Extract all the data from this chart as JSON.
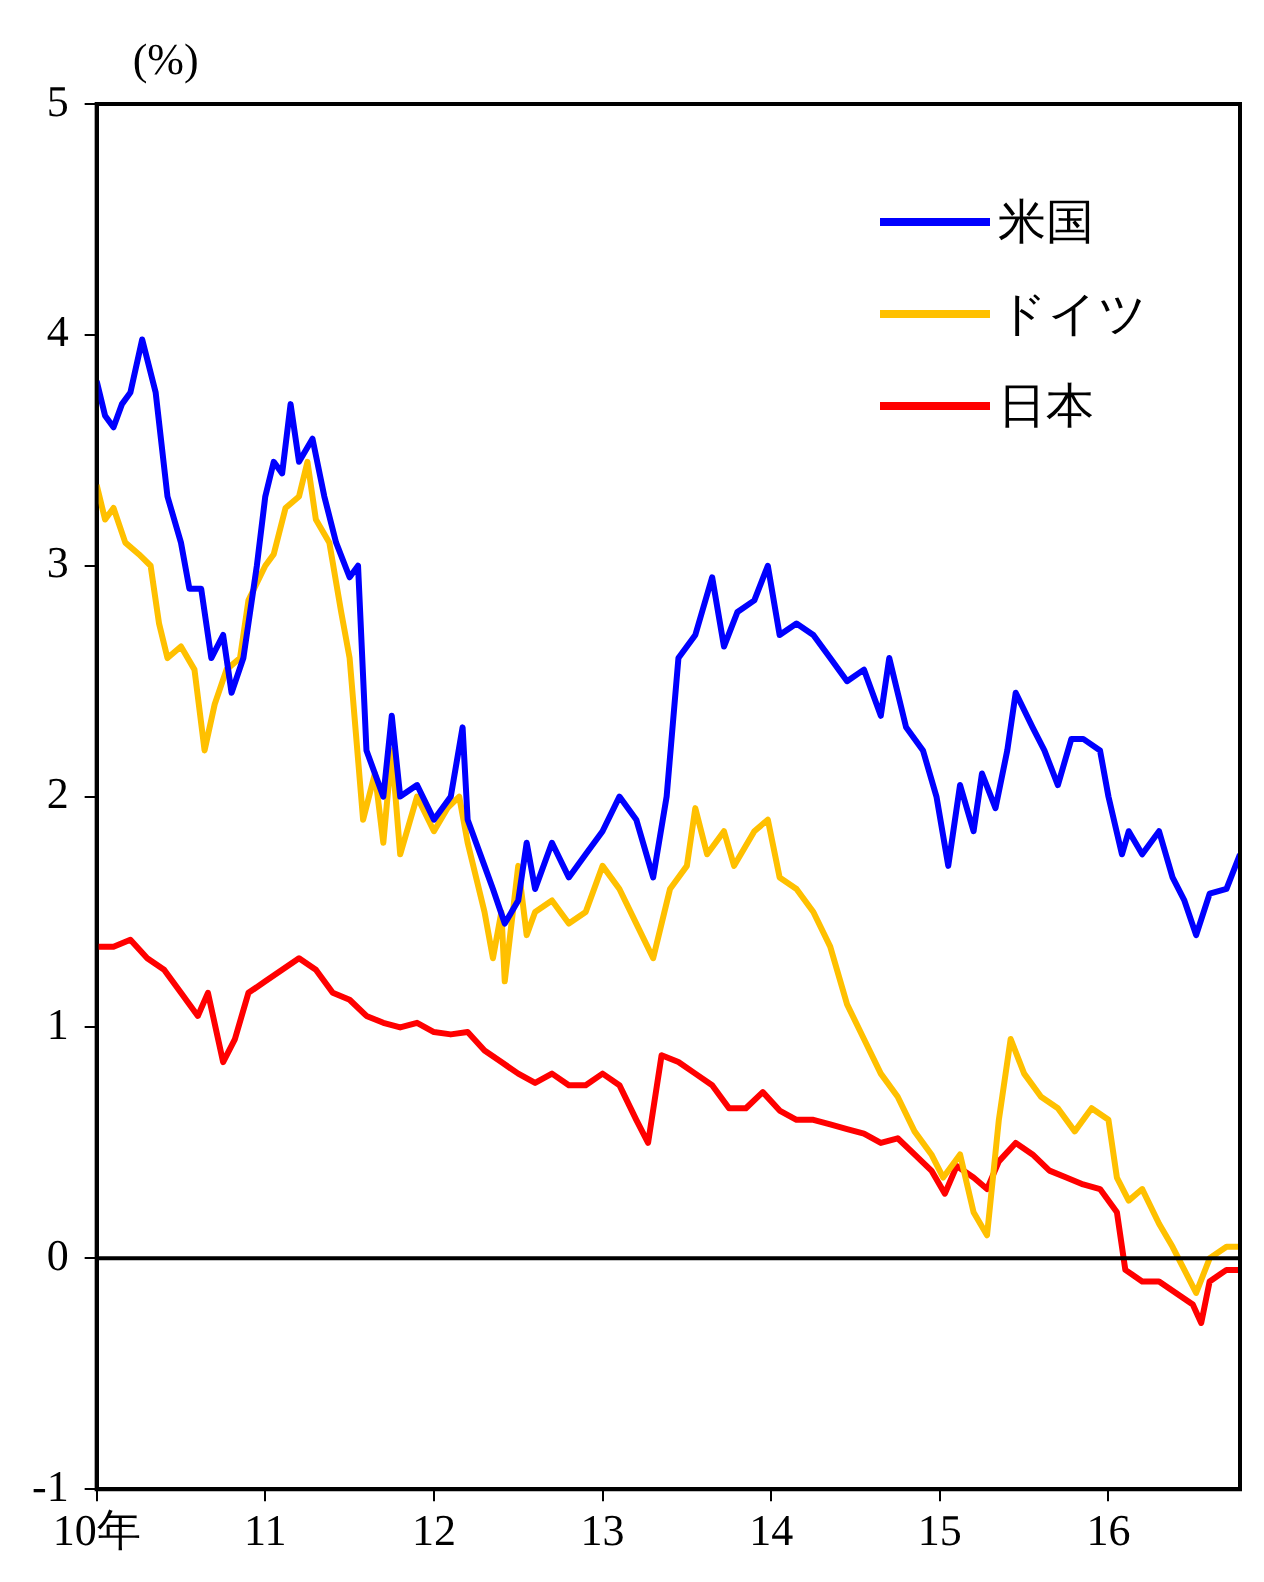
{
  "chart_data": {
    "type": "line",
    "ylabel": "(%)",
    "xlim": [
      10,
      16.78
    ],
    "xticks": [
      {
        "value": 10,
        "label": "10年"
      },
      11,
      12,
      13,
      14,
      15,
      16
    ],
    "ylim": [
      -1,
      5
    ],
    "yticks": [
      -1,
      0,
      1,
      2,
      3,
      4,
      5
    ],
    "grid": false,
    "legend": "top right",
    "marker": "none",
    "line_style": "solid",
    "ref_lines": [
      {
        "axis": "y",
        "value": 0,
        "color": "#000000"
      }
    ],
    "series": [
      {
        "name": "米国",
        "color": "#0000ff",
        "x": [
          10,
          10.05,
          10.1,
          10.15,
          10.2,
          10.27,
          10.35,
          10.42,
          10.5,
          10.55,
          10.62,
          10.68,
          10.75,
          10.8,
          10.87,
          10.95,
          11,
          11.05,
          11.1,
          11.15,
          11.2,
          11.28,
          11.35,
          11.42,
          11.5,
          11.55,
          11.6,
          11.7,
          11.75,
          11.8,
          11.9,
          12,
          12.1,
          12.17,
          12.2,
          12.3,
          12.35,
          12.42,
          12.5,
          12.55,
          12.6,
          12.7,
          12.8,
          12.9,
          13,
          13.1,
          13.2,
          13.3,
          13.38,
          13.45,
          13.55,
          13.65,
          13.72,
          13.8,
          13.9,
          13.98,
          14.05,
          14.15,
          14.25,
          14.35,
          14.45,
          14.55,
          14.65,
          14.7,
          14.8,
          14.9,
          14.98,
          15.05,
          15.12,
          15.2,
          15.25,
          15.33,
          15.4,
          15.45,
          15.55,
          15.62,
          15.7,
          15.78,
          15.85,
          15.95,
          16,
          16.08,
          16.12,
          16.2,
          16.3,
          16.38,
          16.45,
          16.52,
          16.6,
          16.7,
          16.78
        ],
        "values": [
          3.8,
          3.65,
          3.6,
          3.7,
          3.75,
          3.98,
          3.75,
          3.3,
          3.1,
          2.9,
          2.9,
          2.6,
          2.7,
          2.45,
          2.6,
          3.0,
          3.3,
          3.45,
          3.4,
          3.7,
          3.45,
          3.55,
          3.3,
          3.1,
          2.95,
          3.0,
          2.2,
          2.0,
          2.35,
          2.0,
          2.05,
          1.9,
          2.0,
          2.3,
          1.9,
          1.7,
          1.6,
          1.45,
          1.55,
          1.8,
          1.6,
          1.8,
          1.65,
          1.75,
          1.85,
          2.0,
          1.9,
          1.65,
          2.0,
          2.6,
          2.7,
          2.95,
          2.65,
          2.8,
          2.85,
          3.0,
          2.7,
          2.75,
          2.7,
          2.6,
          2.5,
          2.55,
          2.35,
          2.6,
          2.3,
          2.2,
          2.0,
          1.7,
          2.05,
          1.85,
          2.1,
          1.95,
          2.2,
          2.45,
          2.3,
          2.2,
          2.05,
          2.25,
          2.25,
          2.2,
          2.0,
          1.75,
          1.85,
          1.75,
          1.85,
          1.65,
          1.55,
          1.4,
          1.58,
          1.6,
          1.75
        ]
      },
      {
        "name": "ドイツ",
        "color": "#ffc000",
        "x": [
          10,
          10.05,
          10.1,
          10.17,
          10.25,
          10.32,
          10.37,
          10.42,
          10.5,
          10.58,
          10.64,
          10.7,
          10.77,
          10.85,
          10.9,
          11,
          11.05,
          11.12,
          11.2,
          11.25,
          11.3,
          11.38,
          11.45,
          11.5,
          11.58,
          11.65,
          11.7,
          11.75,
          11.8,
          11.9,
          12,
          12.08,
          12.15,
          12.2,
          12.3,
          12.35,
          12.4,
          12.42,
          12.5,
          12.55,
          12.6,
          12.7,
          12.8,
          12.9,
          13,
          13.1,
          13.2,
          13.3,
          13.4,
          13.5,
          13.55,
          13.62,
          13.72,
          13.78,
          13.9,
          13.98,
          14.05,
          14.15,
          14.25,
          14.35,
          14.45,
          14.55,
          14.65,
          14.75,
          14.85,
          14.95,
          15.02,
          15.12,
          15.2,
          15.28,
          15.35,
          15.42,
          15.5,
          15.6,
          15.7,
          15.8,
          15.9,
          16,
          16.05,
          16.12,
          16.2,
          16.3,
          16.38,
          16.45,
          16.52,
          16.6,
          16.7,
          16.78
        ],
        "values": [
          3.35,
          3.2,
          3.25,
          3.1,
          3.05,
          3.0,
          2.75,
          2.6,
          2.65,
          2.55,
          2.2,
          2.4,
          2.55,
          2.6,
          2.85,
          3.0,
          3.05,
          3.25,
          3.3,
          3.45,
          3.2,
          3.1,
          2.8,
          2.6,
          1.9,
          2.1,
          1.8,
          2.2,
          1.75,
          2.0,
          1.85,
          1.95,
          2.0,
          1.8,
          1.5,
          1.3,
          1.5,
          1.2,
          1.7,
          1.4,
          1.5,
          1.55,
          1.45,
          1.5,
          1.7,
          1.6,
          1.45,
          1.3,
          1.6,
          1.7,
          1.95,
          1.75,
          1.85,
          1.7,
          1.85,
          1.9,
          1.65,
          1.6,
          1.5,
          1.35,
          1.1,
          0.95,
          0.8,
          0.7,
          0.55,
          0.45,
          0.35,
          0.45,
          0.2,
          0.1,
          0.6,
          0.95,
          0.8,
          0.7,
          0.65,
          0.55,
          0.65,
          0.6,
          0.35,
          0.25,
          0.3,
          0.15,
          0.05,
          -0.05,
          -0.15,
          0.0,
          0.05,
          0.05
        ]
      },
      {
        "name": "日本",
        "color": "#ff0000",
        "x": [
          10,
          10.1,
          10.2,
          10.3,
          10.4,
          10.5,
          10.6,
          10.66,
          10.75,
          10.82,
          10.9,
          11,
          11.1,
          11.2,
          11.3,
          11.4,
          11.5,
          11.6,
          11.7,
          11.8,
          11.9,
          12,
          12.1,
          12.2,
          12.3,
          12.4,
          12.5,
          12.6,
          12.7,
          12.8,
          12.9,
          13,
          13.1,
          13.2,
          13.27,
          13.35,
          13.45,
          13.55,
          13.65,
          13.75,
          13.85,
          13.95,
          14.05,
          14.15,
          14.25,
          14.35,
          14.45,
          14.55,
          14.65,
          14.75,
          14.85,
          14.95,
          15.03,
          15.1,
          15.2,
          15.28,
          15.35,
          15.45,
          15.55,
          15.65,
          15.75,
          15.85,
          15.95,
          16.05,
          16.1,
          16.2,
          16.3,
          16.4,
          16.5,
          16.55,
          16.6,
          16.7,
          16.78
        ],
        "values": [
          1.35,
          1.35,
          1.38,
          1.3,
          1.25,
          1.15,
          1.05,
          1.15,
          0.85,
          0.95,
          1.15,
          1.2,
          1.25,
          1.3,
          1.25,
          1.15,
          1.12,
          1.05,
          1.02,
          1.0,
          1.02,
          0.98,
          0.97,
          0.98,
          0.9,
          0.85,
          0.8,
          0.76,
          0.8,
          0.75,
          0.75,
          0.8,
          0.75,
          0.6,
          0.5,
          0.88,
          0.85,
          0.8,
          0.75,
          0.65,
          0.65,
          0.72,
          0.64,
          0.6,
          0.6,
          0.58,
          0.56,
          0.54,
          0.5,
          0.52,
          0.45,
          0.38,
          0.28,
          0.4,
          0.35,
          0.3,
          0.42,
          0.5,
          0.45,
          0.38,
          0.35,
          0.32,
          0.3,
          0.2,
          -0.05,
          -0.1,
          -0.1,
          -0.15,
          -0.2,
          -0.28,
          -0.1,
          -0.05,
          -0.05
        ]
      }
    ]
  }
}
